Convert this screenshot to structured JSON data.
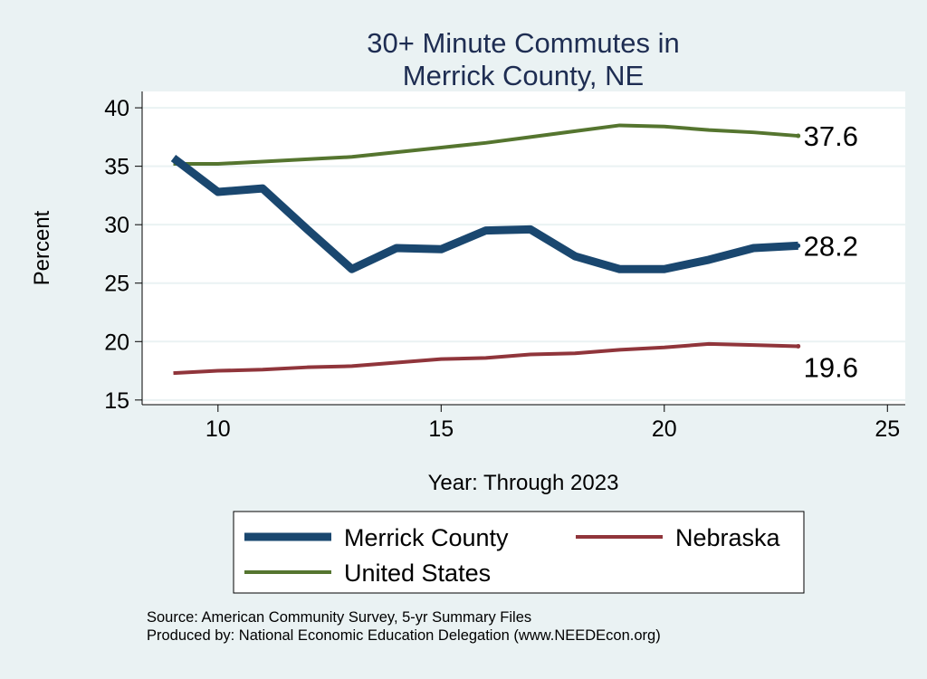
{
  "chart_data": {
    "type": "line",
    "title": [
      "30+ Minute Commutes in",
      "Merrick County, NE"
    ],
    "xlabel": "Year: Through 2023",
    "ylabel": "Percent",
    "xlim": [
      8.3,
      25.4
    ],
    "ylim": [
      14.6,
      41.4
    ],
    "xticks": [
      10,
      15,
      20,
      25
    ],
    "yticks": [
      15,
      20,
      25,
      30,
      35,
      40
    ],
    "grid": true,
    "x": [
      9,
      10,
      11,
      12,
      13,
      14,
      15,
      16,
      17,
      18,
      19,
      20,
      21,
      22,
      23
    ],
    "series": [
      {
        "name": "Merrick County",
        "color": "#1a476f",
        "width": 9,
        "values": [
          35.7,
          32.8,
          33.1,
          29.6,
          26.2,
          28.0,
          27.9,
          29.5,
          29.6,
          27.3,
          26.2,
          26.2,
          27.0,
          28.0,
          28.2
        ],
        "end_label": "28.2"
      },
      {
        "name": "Nebraska",
        "color": "#90353b",
        "width": 4,
        "values": [
          17.3,
          17.5,
          17.6,
          17.8,
          17.9,
          18.2,
          18.5,
          18.6,
          18.9,
          19.0,
          19.3,
          19.5,
          19.8,
          19.7,
          19.6
        ],
        "end_label": "19.6"
      },
      {
        "name": "United States",
        "color": "#55752f",
        "width": 4,
        "values": [
          35.2,
          35.2,
          35.4,
          35.6,
          35.8,
          36.2,
          36.6,
          37.0,
          37.5,
          38.0,
          38.5,
          38.4,
          38.1,
          37.9,
          37.6
        ],
        "end_label": "37.6"
      }
    ],
    "legend_placement": "bottom"
  },
  "notes": [
    "Source: American Community Survey, 5-yr Summary Files",
    "Produced by: National Economic Education Delegation (www.NEEDEcon.org)"
  ]
}
